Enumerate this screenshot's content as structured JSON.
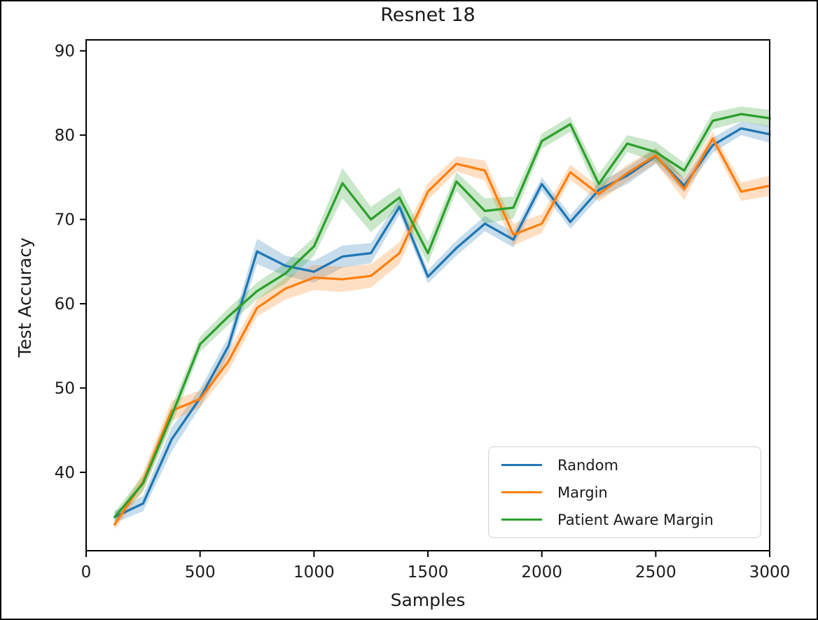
{
  "figure": {
    "background": "#ffffff",
    "frame_color": "#000000",
    "text_color": "#1a1a1a"
  },
  "chart_data": {
    "type": "line",
    "title": "Resnet 18",
    "xlabel": "Samples",
    "ylabel": "Test Accuracy",
    "xlim": [
      0,
      3000
    ],
    "ylim": [
      30.7,
      91.3
    ],
    "x_ticks": [
      0,
      500,
      1000,
      1500,
      2000,
      2500,
      3000
    ],
    "y_ticks": [
      40,
      50,
      60,
      70,
      80,
      90
    ],
    "grid": false,
    "legend_position": "lower right",
    "band_opacity": 0.25,
    "x": [
      125,
      250,
      375,
      500,
      625,
      750,
      875,
      1000,
      1125,
      1250,
      1375,
      1500,
      1625,
      1750,
      1875,
      2000,
      2125,
      2250,
      2375,
      2500,
      2625,
      2750,
      2875,
      3000
    ],
    "series": [
      {
        "name": "Random",
        "color": "#1f77b4",
        "values": [
          34.7,
          36.3,
          43.9,
          48.8,
          55.0,
          66.2,
          64.5,
          63.8,
          65.6,
          66.0,
          71.5,
          63.2,
          66.6,
          69.5,
          67.6,
          74.2,
          69.7,
          73.5,
          75.2,
          77.5,
          74.0,
          78.8,
          80.8,
          80.1
        ],
        "band": [
          0.7,
          0.9,
          1.4,
          1.1,
          1.1,
          1.5,
          1.2,
          1.3,
          1.3,
          1.2,
          0.9,
          0.8,
          0.9,
          0.9,
          0.9,
          0.8,
          0.8,
          0.9,
          1.0,
          0.9,
          0.8,
          0.9,
          0.8,
          1.0
        ]
      },
      {
        "name": "Margin",
        "color": "#ff7f0e",
        "values": [
          33.8,
          38.9,
          47.3,
          48.7,
          53.2,
          59.5,
          61.8,
          63.1,
          62.9,
          63.3,
          66.0,
          73.3,
          76.6,
          75.8,
          68.2,
          69.5,
          75.6,
          73.0,
          75.5,
          77.6,
          73.6,
          79.6,
          73.3,
          74.0
        ],
        "band": [
          0.6,
          1.1,
          1.2,
          1.0,
          1.2,
          1.0,
          1.3,
          1.5,
          1.5,
          1.4,
          1.3,
          1.0,
          0.9,
          1.2,
          1.3,
          1.1,
          0.9,
          0.9,
          1.0,
          0.9,
          1.3,
          0.8,
          1.1,
          1.2
        ]
      },
      {
        "name": "Patient Aware Margin",
        "color": "#2ca02c",
        "values": [
          34.7,
          38.7,
          46.7,
          55.2,
          58.5,
          61.5,
          63.6,
          66.8,
          74.3,
          70.0,
          72.6,
          66.0,
          74.5,
          71.0,
          71.4,
          79.3,
          81.3,
          74.2,
          79.0,
          78.0,
          75.8,
          81.7,
          82.5,
          82.0
        ],
        "band": [
          0.6,
          0.9,
          1.1,
          0.9,
          1.0,
          1.0,
          1.2,
          1.1,
          1.8,
          1.5,
          1.2,
          1.3,
          1.1,
          1.5,
          1.3,
          0.9,
          0.9,
          1.2,
          1.0,
          1.2,
          0.9,
          1.0,
          0.9,
          1.0
        ]
      }
    ]
  }
}
